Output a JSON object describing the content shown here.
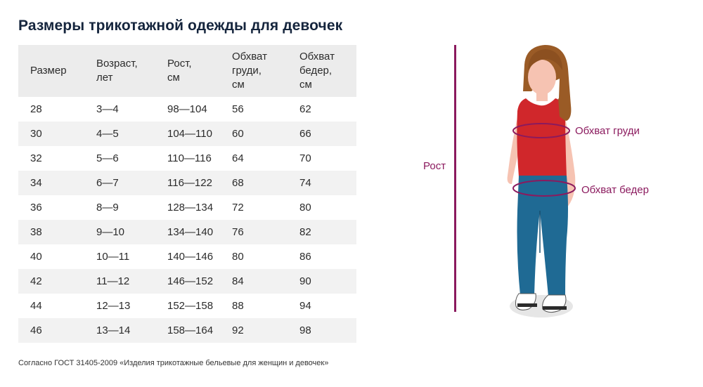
{
  "title": "Размеры трикотажной одежды для девочек",
  "table": {
    "headers": [
      "Размер",
      "Возраст,\nлет",
      "Рост,\nсм",
      "Обхват\nгруди,\nсм",
      "Обхват\nбедер,\nсм"
    ],
    "rows": [
      [
        "28",
        "3—4",
        "98—104",
        "56",
        "62"
      ],
      [
        "30",
        "4—5",
        "104—110",
        "60",
        "66"
      ],
      [
        "32",
        "5—6",
        "110—116",
        "64",
        "70"
      ],
      [
        "34",
        "6—7",
        "116—122",
        "68",
        "74"
      ],
      [
        "36",
        "8—9",
        "128—134",
        "72",
        "80"
      ],
      [
        "38",
        "9—10",
        "134—140",
        "76",
        "82"
      ],
      [
        "40",
        "10—11",
        "140—146",
        "80",
        "86"
      ],
      [
        "42",
        "11—12",
        "146—152",
        "84",
        "90"
      ],
      [
        "44",
        "12—13",
        "152—158",
        "88",
        "94"
      ],
      [
        "46",
        "13—14",
        "158—164",
        "92",
        "98"
      ]
    ]
  },
  "footnote": "Согласно ГОСТ 31405-2009 «Изделия трикотажные бельевые для женщин и девочек»",
  "figure": {
    "height_label": "Рост",
    "chest_label": "Обхват груди",
    "hips_label": "Обхват бедер",
    "accent_color": "#8b1a5e"
  }
}
